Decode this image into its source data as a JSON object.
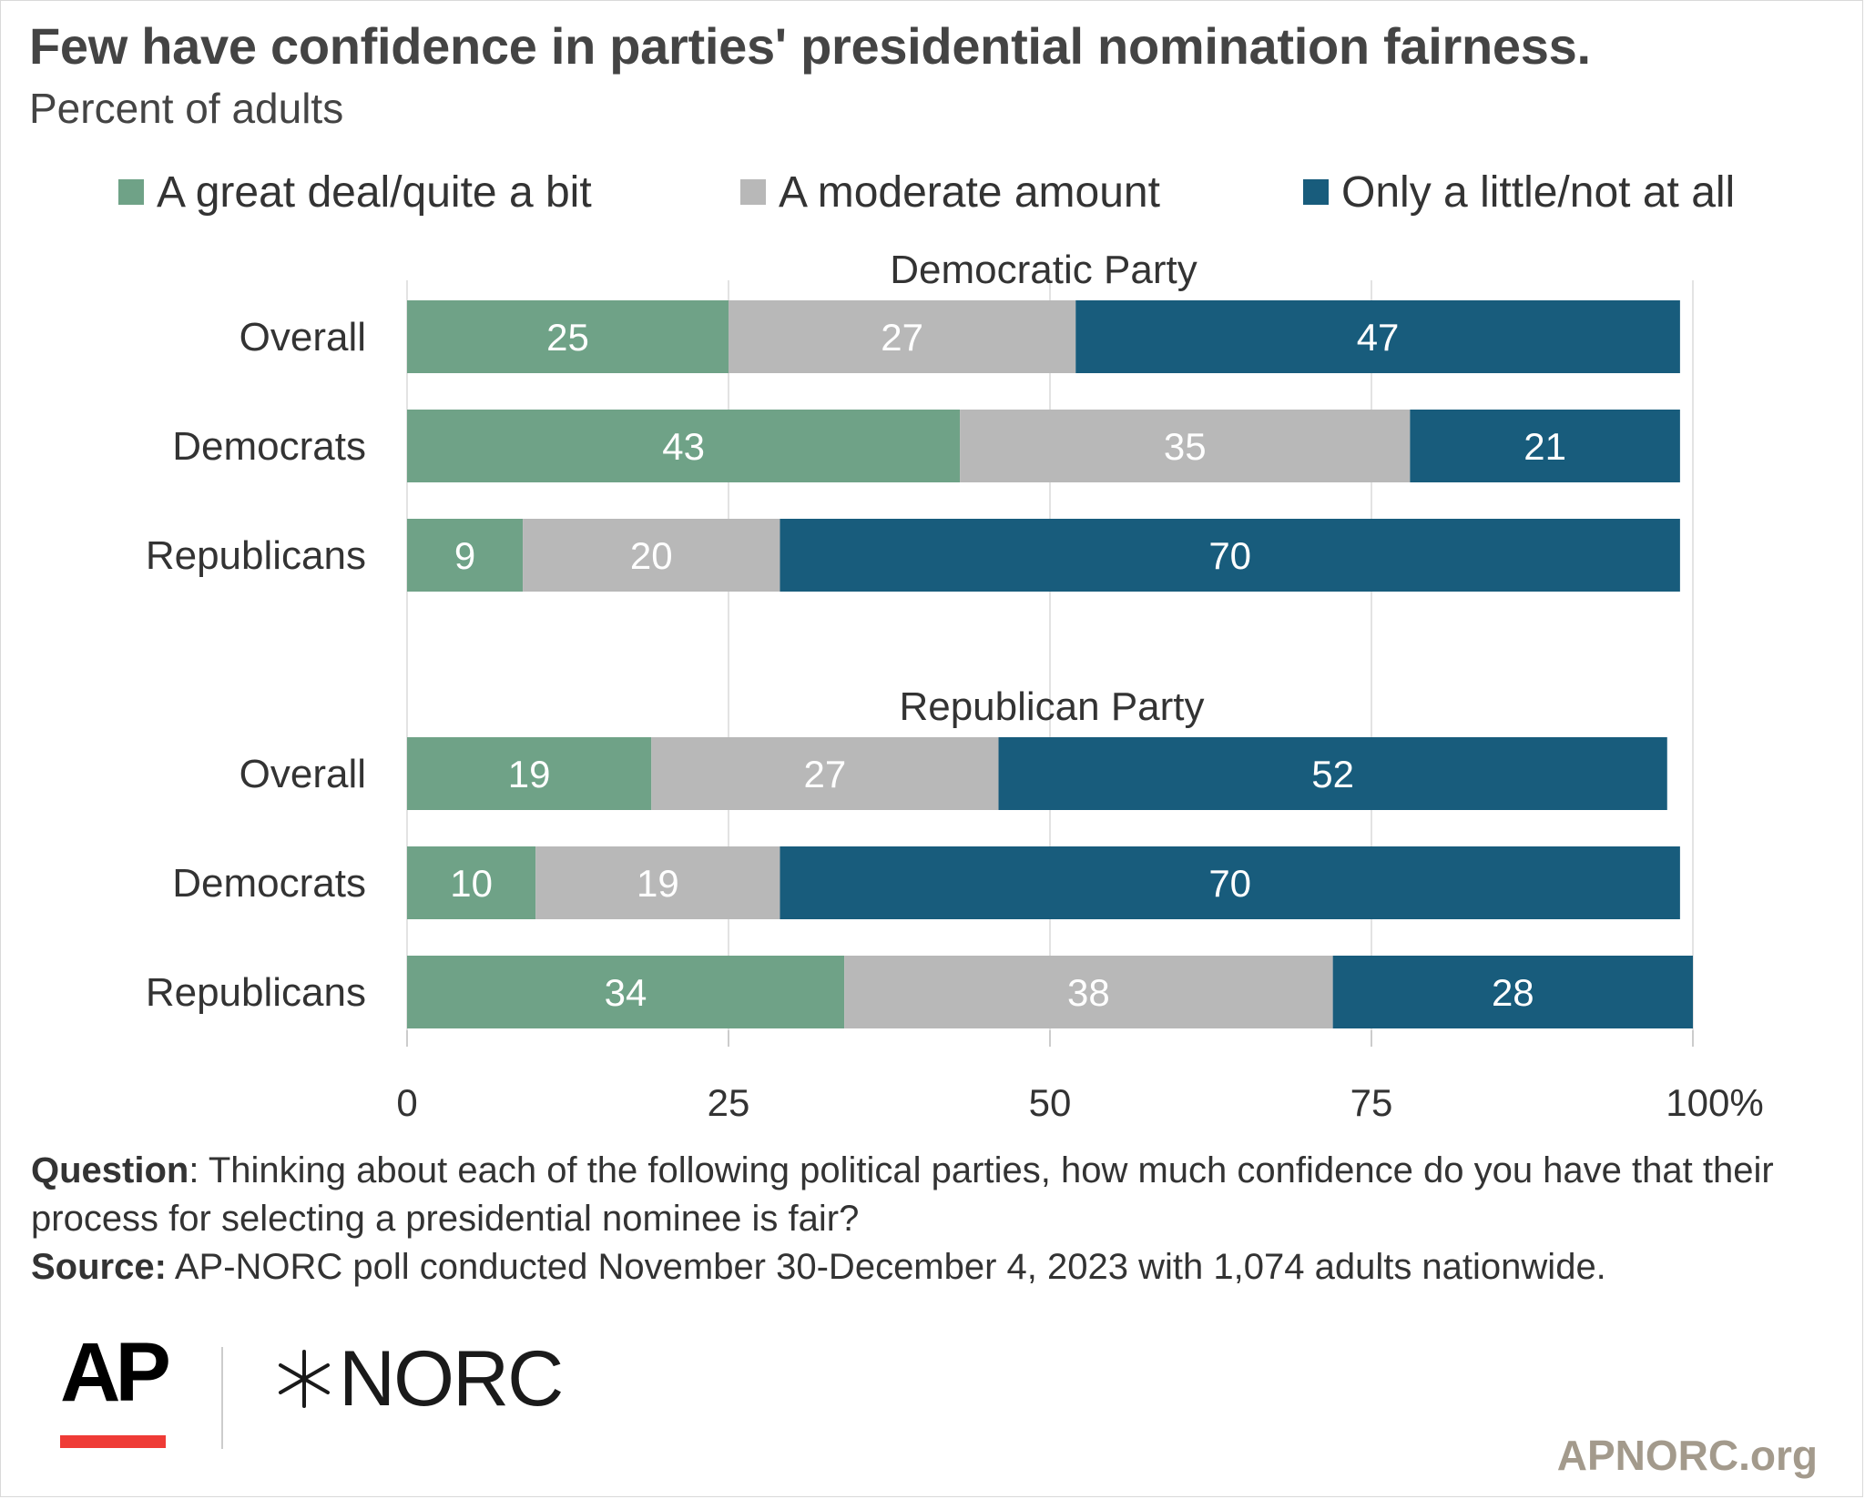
{
  "header": {
    "title": "Few have confidence in parties' presidential nomination fairness.",
    "subtitle": "Percent of adults"
  },
  "legend": [
    {
      "label": "A great deal/quite a bit",
      "color": "#6fa287"
    },
    {
      "label": "A moderate amount",
      "color": "#b8b8b8"
    },
    {
      "label": "Only a little/not at all",
      "color": "#185c7c"
    }
  ],
  "chart_data": {
    "type": "bar",
    "orientation": "horizontal",
    "stacked": true,
    "xlim": [
      0,
      100
    ],
    "x_ticks": [
      "0",
      "25",
      "50",
      "75",
      "100%"
    ],
    "grid": true,
    "legend_position": "top",
    "series_names": [
      "A great deal/quite a bit",
      "A moderate amount",
      "Only a little/not at all"
    ],
    "colors": [
      "#6fa287",
      "#b8b8b8",
      "#185c7c"
    ],
    "groups": [
      {
        "title": "Democratic Party",
        "rows": [
          {
            "label": "Overall",
            "values": [
              25,
              27,
              47
            ]
          },
          {
            "label": "Democrats",
            "values": [
              43,
              35,
              21
            ]
          },
          {
            "label": "Republicans",
            "values": [
              9,
              20,
              70
            ]
          }
        ]
      },
      {
        "title": "Republican Party",
        "rows": [
          {
            "label": "Overall",
            "values": [
              19,
              27,
              52
            ]
          },
          {
            "label": "Democrats",
            "values": [
              10,
              19,
              70
            ]
          },
          {
            "label": "Republicans",
            "values": [
              34,
              38,
              28
            ]
          }
        ]
      }
    ]
  },
  "footer": {
    "question_label": "Question",
    "question_text": ": Thinking about each of the following political parties, how much confidence do you have that their process for selecting a presidential nominee is fair?",
    "source_label": "Source:",
    "source_text": " AP-NORC poll conducted November 30-December 4, 2023 with 1,074 adults nationwide.",
    "ap_logo": "AP",
    "norc_logo": "NORC",
    "site": "APNORC.org"
  }
}
